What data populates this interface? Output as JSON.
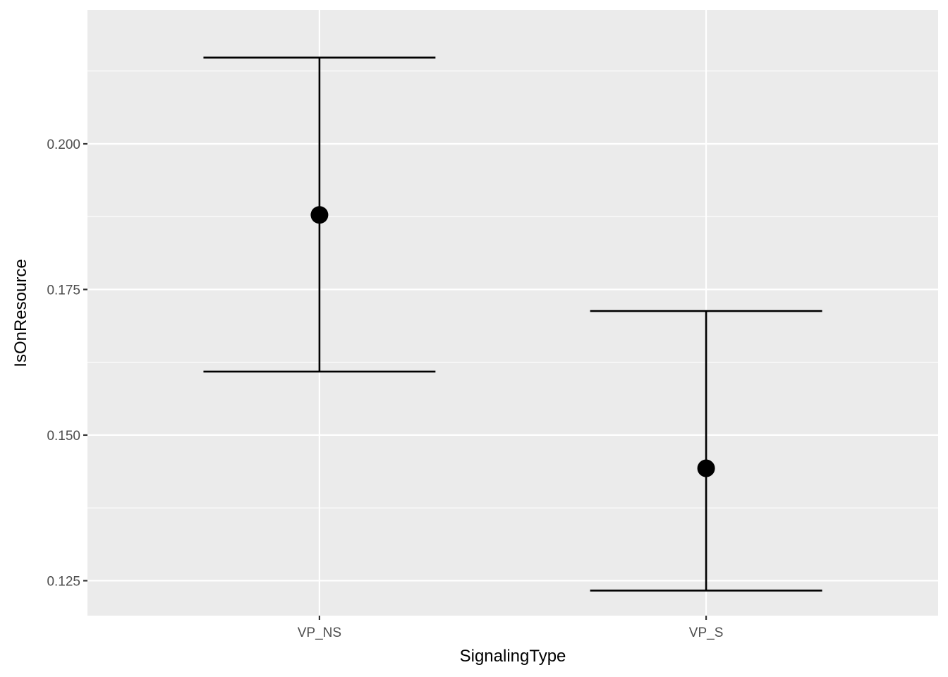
{
  "chart_data": {
    "type": "scatter",
    "subtype": "pointrange-errorbar",
    "xlabel": "SignalingType",
    "ylabel": "IsOnResource",
    "categories": [
      "VP_NS",
      "VP_S"
    ],
    "points": [
      {
        "category": "VP_NS",
        "y": 0.1878,
        "ymin": 0.1609,
        "ymax": 0.2148
      },
      {
        "category": "VP_S",
        "y": 0.1443,
        "ymin": 0.1233,
        "ymax": 0.1713
      }
    ],
    "ylim": [
      0.119,
      0.223
    ],
    "yticks": [
      0.125,
      0.15,
      0.175,
      0.2
    ],
    "ytick_labels": [
      "0.125",
      "0.150",
      "0.175",
      "0.200"
    ],
    "grid": true,
    "legend": "none",
    "colors": {
      "panel": "#ebebeb",
      "grid": "#ffffff",
      "marks": "#000000"
    }
  }
}
